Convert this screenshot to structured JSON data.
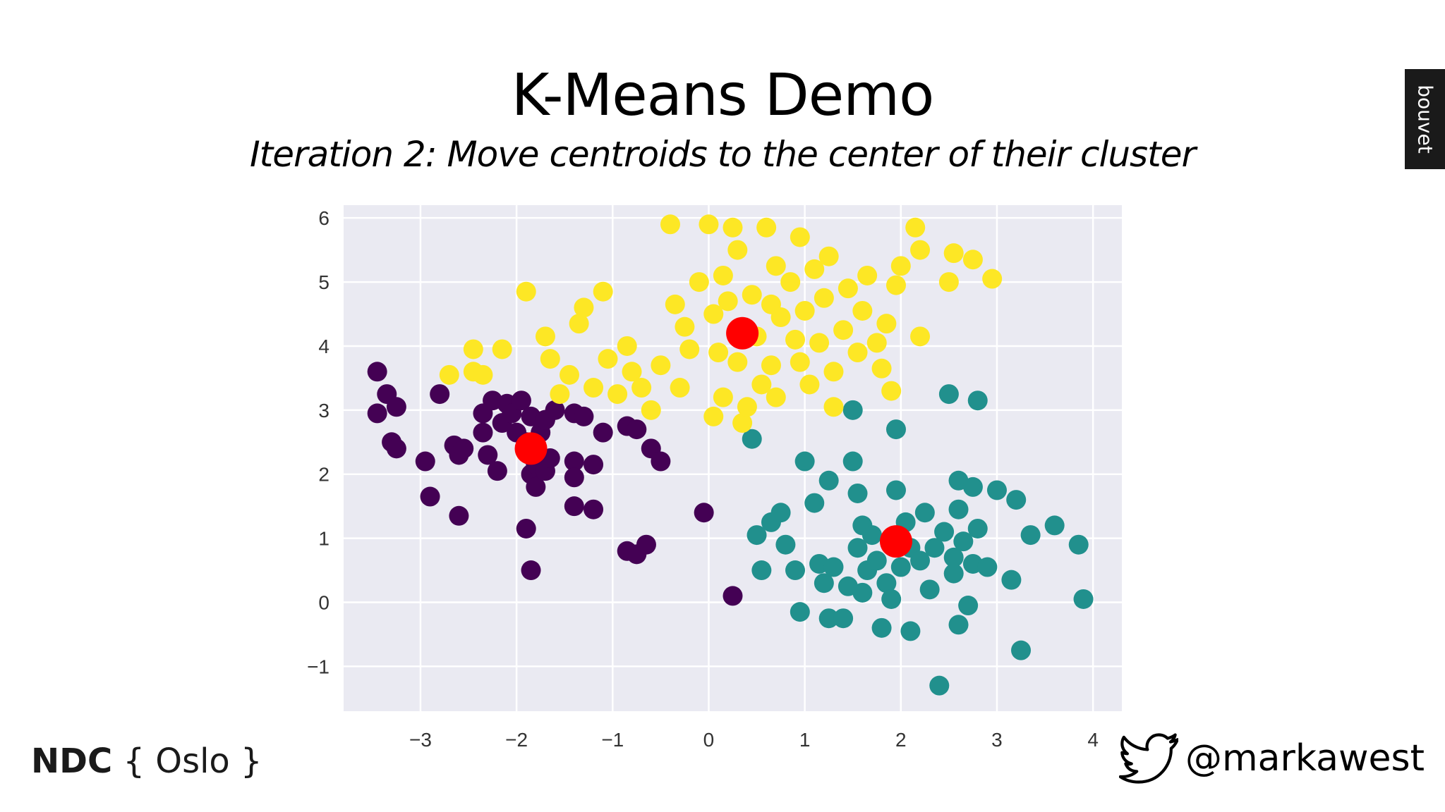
{
  "slide": {
    "title": "K-Means Demo",
    "subtitle": "Iteration 2: Move centroids to the center of their cluster",
    "brand_tab": "bouvet",
    "conference_bold": "NDC",
    "conference_rest": " { Oslo }",
    "twitter_handle": "@markawest"
  },
  "colors": {
    "plot_bg": "#eaeaf2",
    "grid": "#ffffff",
    "purple": "#440154",
    "teal": "#21908d",
    "yellow": "#fde725",
    "centroid": "#ff0000",
    "twitter": "#000000"
  },
  "chart_data": {
    "type": "scatter",
    "grid": true,
    "xlim": [
      -3.8,
      4.3
    ],
    "ylim": [
      -1.7,
      6.2
    ],
    "xticks": [
      -3,
      -2,
      -1,
      0,
      1,
      2,
      3,
      4
    ],
    "yticks": [
      -1,
      0,
      1,
      2,
      3,
      4,
      5,
      6
    ],
    "xtick_labels": [
      "−3",
      "−2",
      "−1",
      "0",
      "1",
      "2",
      "3",
      "4"
    ],
    "ytick_labels": [
      "−1",
      "0",
      "1",
      "2",
      "3",
      "4",
      "5",
      "6"
    ],
    "series": [
      {
        "color_key": "purple",
        "points": [
          [
            -3.45,
            3.6
          ],
          [
            -3.35,
            3.25
          ],
          [
            -3.45,
            2.95
          ],
          [
            -3.25,
            3.05
          ],
          [
            -3.3,
            2.5
          ],
          [
            -3.25,
            2.4
          ],
          [
            -2.95,
            2.2
          ],
          [
            -2.8,
            3.25
          ],
          [
            -2.9,
            1.65
          ],
          [
            -2.65,
            2.45
          ],
          [
            -2.6,
            2.3
          ],
          [
            -2.55,
            2.4
          ],
          [
            -2.6,
            1.35
          ],
          [
            -2.35,
            2.95
          ],
          [
            -2.35,
            2.65
          ],
          [
            -2.3,
            2.3
          ],
          [
            -2.25,
            3.15
          ],
          [
            -2.2,
            2.05
          ],
          [
            -2.15,
            2.8
          ],
          [
            -2.1,
            3.1
          ],
          [
            -2.05,
            2.95
          ],
          [
            -2.0,
            2.65
          ],
          [
            -1.95,
            3.15
          ],
          [
            -1.9,
            2.5
          ],
          [
            -1.85,
            2.9
          ],
          [
            -1.85,
            2.0
          ],
          [
            -1.8,
            2.15
          ],
          [
            -1.8,
            1.8
          ],
          [
            -1.75,
            2.65
          ],
          [
            -1.7,
            2.85
          ],
          [
            -1.7,
            2.05
          ],
          [
            -1.65,
            2.25
          ],
          [
            -1.6,
            3.0
          ],
          [
            -1.4,
            2.95
          ],
          [
            -1.4,
            2.2
          ],
          [
            -1.4,
            1.95
          ],
          [
            -1.4,
            1.5
          ],
          [
            -1.3,
            2.9
          ],
          [
            -1.2,
            2.15
          ],
          [
            -1.2,
            1.45
          ],
          [
            -1.1,
            2.65
          ],
          [
            -0.85,
            2.75
          ],
          [
            -0.75,
            2.7
          ],
          [
            -0.6,
            2.4
          ],
          [
            -0.5,
            2.2
          ],
          [
            -0.85,
            0.8
          ],
          [
            -0.75,
            0.75
          ],
          [
            -0.65,
            0.9
          ],
          [
            -1.9,
            1.15
          ],
          [
            -1.85,
            0.5
          ],
          [
            -0.05,
            1.4
          ],
          [
            0.25,
            0.1
          ]
        ]
      },
      {
        "color_key": "teal",
        "points": [
          [
            0.45,
            2.55
          ],
          [
            0.5,
            1.05
          ],
          [
            0.55,
            0.5
          ],
          [
            0.65,
            1.25
          ],
          [
            0.75,
            1.4
          ],
          [
            0.8,
            0.9
          ],
          [
            0.9,
            0.5
          ],
          [
            0.95,
            -0.15
          ],
          [
            1.0,
            2.2
          ],
          [
            1.1,
            1.55
          ],
          [
            1.15,
            0.6
          ],
          [
            1.2,
            0.3
          ],
          [
            1.25,
            1.9
          ],
          [
            1.25,
            -0.25
          ],
          [
            1.3,
            0.55
          ],
          [
            1.4,
            -0.25
          ],
          [
            1.45,
            0.25
          ],
          [
            1.5,
            3.0
          ],
          [
            1.5,
            2.2
          ],
          [
            1.55,
            1.7
          ],
          [
            1.55,
            0.85
          ],
          [
            1.6,
            0.15
          ],
          [
            1.6,
            1.2
          ],
          [
            1.65,
            0.5
          ],
          [
            1.7,
            1.05
          ],
          [
            1.75,
            0.65
          ],
          [
            1.8,
            -0.4
          ],
          [
            1.85,
            0.3
          ],
          [
            1.9,
            1.0
          ],
          [
            1.9,
            0.05
          ],
          [
            1.95,
            2.7
          ],
          [
            1.95,
            1.75
          ],
          [
            2.0,
            0.55
          ],
          [
            2.05,
            1.25
          ],
          [
            2.1,
            -0.45
          ],
          [
            2.1,
            0.85
          ],
          [
            2.2,
            0.65
          ],
          [
            2.25,
            1.4
          ],
          [
            2.3,
            0.2
          ],
          [
            2.35,
            0.85
          ],
          [
            2.4,
            -1.3
          ],
          [
            2.45,
            1.1
          ],
          [
            2.5,
            3.25
          ],
          [
            2.55,
            0.45
          ],
          [
            2.55,
            0.7
          ],
          [
            2.6,
            1.45
          ],
          [
            2.6,
            1.9
          ],
          [
            2.6,
            -0.35
          ],
          [
            2.65,
            0.95
          ],
          [
            2.7,
            -0.05
          ],
          [
            2.75,
            1.8
          ],
          [
            2.75,
            0.6
          ],
          [
            2.8,
            1.15
          ],
          [
            2.8,
            3.15
          ],
          [
            2.9,
            0.55
          ],
          [
            3.0,
            1.75
          ],
          [
            3.15,
            0.35
          ],
          [
            3.2,
            1.6
          ],
          [
            3.25,
            -0.75
          ],
          [
            3.35,
            1.05
          ],
          [
            3.6,
            1.2
          ],
          [
            3.85,
            0.9
          ],
          [
            3.9,
            0.05
          ]
        ]
      },
      {
        "color_key": "yellow",
        "points": [
          [
            -2.7,
            3.55
          ],
          [
            -2.45,
            3.95
          ],
          [
            -2.45,
            3.6
          ],
          [
            -2.35,
            3.55
          ],
          [
            -2.15,
            3.95
          ],
          [
            -1.9,
            4.85
          ],
          [
            -1.7,
            4.15
          ],
          [
            -1.65,
            3.8
          ],
          [
            -1.55,
            3.25
          ],
          [
            -1.45,
            3.55
          ],
          [
            -1.35,
            4.35
          ],
          [
            -1.3,
            4.6
          ],
          [
            -1.2,
            3.35
          ],
          [
            -1.1,
            4.85
          ],
          [
            -1.05,
            3.8
          ],
          [
            -0.95,
            3.25
          ],
          [
            -0.85,
            4.0
          ],
          [
            -0.8,
            3.6
          ],
          [
            -0.7,
            3.35
          ],
          [
            -0.6,
            3.0
          ],
          [
            -0.5,
            3.7
          ],
          [
            -0.4,
            5.9
          ],
          [
            -0.35,
            4.65
          ],
          [
            -0.3,
            3.35
          ],
          [
            -0.25,
            4.3
          ],
          [
            -0.2,
            3.95
          ],
          [
            -0.1,
            5.0
          ],
          [
            0.0,
            5.9
          ],
          [
            0.05,
            4.5
          ],
          [
            0.05,
            2.9
          ],
          [
            0.1,
            3.9
          ],
          [
            0.15,
            5.1
          ],
          [
            0.15,
            3.2
          ],
          [
            0.2,
            4.7
          ],
          [
            0.25,
            5.85
          ],
          [
            0.3,
            5.5
          ],
          [
            0.3,
            3.75
          ],
          [
            0.35,
            2.8
          ],
          [
            0.4,
            3.05
          ],
          [
            0.45,
            4.8
          ],
          [
            0.5,
            4.15
          ],
          [
            0.55,
            3.4
          ],
          [
            0.6,
            5.85
          ],
          [
            0.65,
            4.65
          ],
          [
            0.65,
            3.7
          ],
          [
            0.7,
            5.25
          ],
          [
            0.7,
            3.2
          ],
          [
            0.75,
            4.45
          ],
          [
            0.85,
            5.0
          ],
          [
            0.9,
            4.1
          ],
          [
            0.95,
            3.75
          ],
          [
            0.95,
            5.7
          ],
          [
            1.0,
            4.55
          ],
          [
            1.05,
            3.4
          ],
          [
            1.1,
            5.2
          ],
          [
            1.15,
            4.05
          ],
          [
            1.2,
            4.75
          ],
          [
            1.25,
            5.4
          ],
          [
            1.3,
            3.6
          ],
          [
            1.3,
            3.05
          ],
          [
            1.4,
            4.25
          ],
          [
            1.45,
            4.9
          ],
          [
            1.55,
            3.9
          ],
          [
            1.6,
            4.55
          ],
          [
            1.65,
            5.1
          ],
          [
            1.75,
            4.05
          ],
          [
            1.8,
            3.65
          ],
          [
            1.85,
            4.35
          ],
          [
            1.9,
            3.3
          ],
          [
            1.95,
            4.95
          ],
          [
            2.0,
            5.25
          ],
          [
            2.15,
            5.85
          ],
          [
            2.2,
            5.5
          ],
          [
            2.2,
            4.15
          ],
          [
            2.5,
            5.0
          ],
          [
            2.55,
            5.45
          ],
          [
            2.75,
            5.35
          ],
          [
            2.95,
            5.05
          ]
        ]
      },
      {
        "color_key": "centroid",
        "name": "",
        "points": [
          [
            -1.85,
            2.4
          ],
          [
            0.35,
            4.2
          ],
          [
            1.95,
            0.95
          ]
        ]
      }
    ]
  }
}
